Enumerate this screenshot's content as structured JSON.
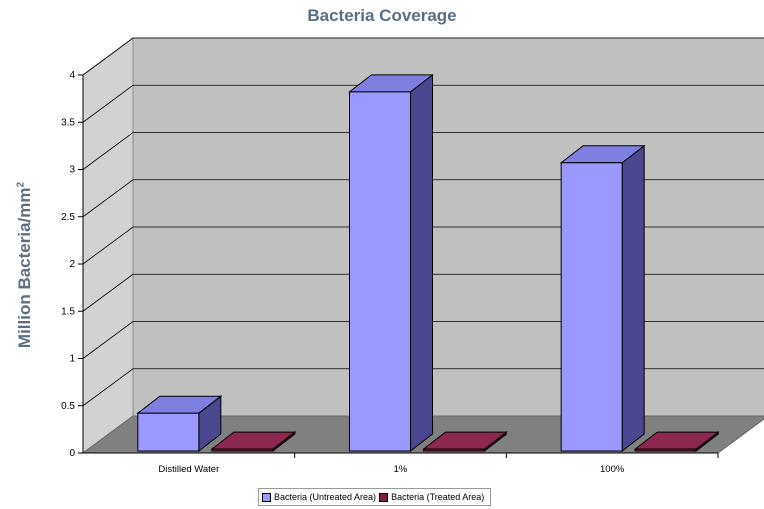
{
  "chart_data": {
    "type": "bar",
    "title": "Bacteria Coverage",
    "ylabel": "Million Bacteria/mm",
    "ylabel_sup": "2",
    "xlabel": "",
    "categories": [
      "Distilled Water",
      "1%",
      "100%"
    ],
    "series": [
      {
        "name": "Bacteria (Untreated Area)",
        "values": [
          0.4,
          3.8,
          3.05
        ],
        "color": "#9999ff",
        "side_color": "#4a4690",
        "top_color": "#7f7fe0"
      },
      {
        "name": "Bacteria (Treated Area)",
        "values": [
          0.02,
          0.02,
          0.02
        ],
        "color": "#7b1f45",
        "side_color": "#4a1028",
        "top_color": "#8c2850"
      }
    ],
    "ylim": [
      0,
      4
    ],
    "yticks": [
      "0",
      "0.5",
      "1",
      "1.5",
      "2",
      "2.5",
      "3",
      "3.5",
      "4"
    ],
    "style": "3d-clustered-column",
    "grid": true,
    "legend_position": "bottom",
    "colors": {
      "wall": "#c0c0c0",
      "floor": "#808080",
      "gridline": "#000000"
    }
  }
}
